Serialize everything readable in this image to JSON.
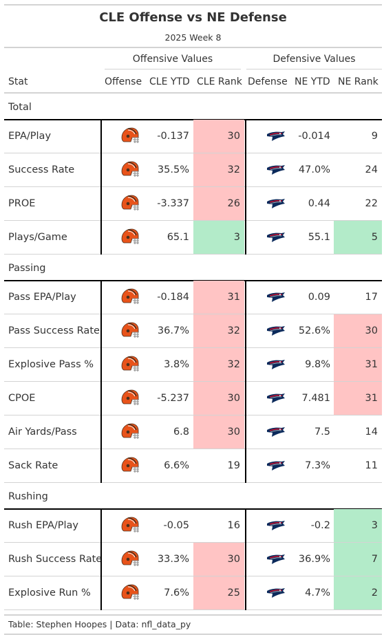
{
  "title": "CLE Offense vs NE Defense",
  "subtitle": "2025 Week 8",
  "spanners": {
    "offense": "Offensive Values",
    "defense": "Defensive Values"
  },
  "columns": {
    "stat": "Stat",
    "offense": "Offense",
    "off_ytd": "CLE YTD",
    "off_rank": "CLE Rank",
    "defense": "Defense",
    "def_ytd": "NE YTD",
    "def_rank": "NE Rank"
  },
  "colors": {
    "bad_rank": "#ffc4c4",
    "good_rank": "#b3ebc9",
    "border": "#d3d3d3",
    "browns_orange": "#e8531a",
    "browns_brown": "#4a2f1d",
    "patriots_navy": "#0b2a5b",
    "patriots_red": "#c8102e"
  },
  "icons": {
    "offense": "cleveland-browns-helmet-icon",
    "defense": "new-england-patriots-logo-icon"
  },
  "footer": "Table: Stephen Hoopes | Data: nfl_data_py",
  "chart_data": {
    "type": "table",
    "groups": [
      {
        "name": "Total",
        "rows": [
          {
            "stat": "EPA/Play",
            "off_ytd": "-0.137",
            "off_rank": 30,
            "def_ytd": "-0.014",
            "def_rank": 9
          },
          {
            "stat": "Success Rate",
            "off_ytd": "35.5%",
            "off_rank": 32,
            "def_ytd": "47.0%",
            "def_rank": 24
          },
          {
            "stat": "PROE",
            "off_ytd": "-3.337",
            "off_rank": 26,
            "def_ytd": "0.44",
            "def_rank": 22
          },
          {
            "stat": "Plays/Game",
            "off_ytd": "65.1",
            "off_rank": 3,
            "def_ytd": "55.1",
            "def_rank": 5
          }
        ]
      },
      {
        "name": "Passing",
        "rows": [
          {
            "stat": "Pass EPA/Play",
            "off_ytd": "-0.184",
            "off_rank": 31,
            "def_ytd": "0.09",
            "def_rank": 17
          },
          {
            "stat": "Pass Success Rate",
            "off_ytd": "36.7%",
            "off_rank": 32,
            "def_ytd": "52.6%",
            "def_rank": 30
          },
          {
            "stat": "Explosive Pass %",
            "off_ytd": "3.8%",
            "off_rank": 32,
            "def_ytd": "9.8%",
            "def_rank": 31
          },
          {
            "stat": "CPOE",
            "off_ytd": "-5.237",
            "off_rank": 30,
            "def_ytd": "7.481",
            "def_rank": 31
          },
          {
            "stat": "Air Yards/Pass",
            "off_ytd": "6.8",
            "off_rank": 30,
            "def_ytd": "7.5",
            "def_rank": 14
          },
          {
            "stat": "Sack Rate",
            "off_ytd": "6.6%",
            "off_rank": 19,
            "def_ytd": "7.3%",
            "def_rank": 11
          }
        ]
      },
      {
        "name": "Rushing",
        "rows": [
          {
            "stat": "Rush EPA/Play",
            "off_ytd": "-0.05",
            "off_rank": 16,
            "def_ytd": "-0.2",
            "def_rank": 3
          },
          {
            "stat": "Rush Success Rate",
            "off_ytd": "33.3%",
            "off_rank": 30,
            "def_ytd": "36.9%",
            "def_rank": 7
          },
          {
            "stat": "Explosive Run %",
            "off_ytd": "7.6%",
            "off_rank": 25,
            "def_ytd": "4.7%",
            "def_rank": 2
          }
        ]
      }
    ]
  }
}
